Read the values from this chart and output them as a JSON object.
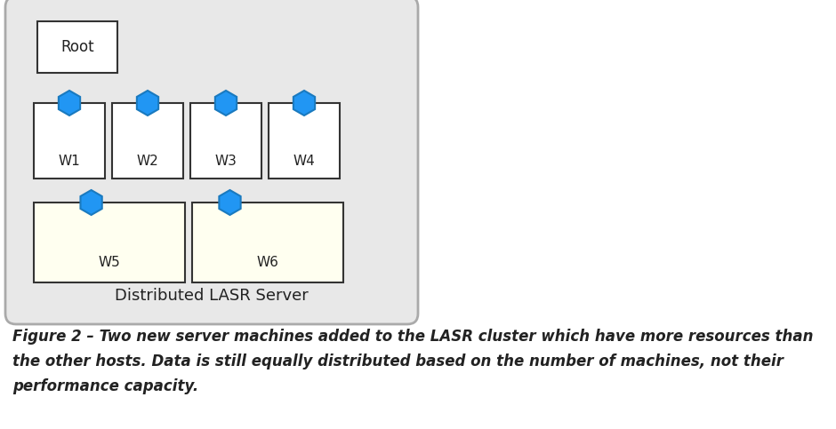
{
  "bg_color": "#ffffff",
  "outer_box_color": "#e8e8e8",
  "outer_box_edge": "#aaaaaa",
  "root_box_color": "#ffffff",
  "root_box_edge": "#333333",
  "worker_box_color": "#ffffff",
  "worker_box_edge": "#333333",
  "worker_box_yellow": "#fffff0",
  "worker_box_yellow_edge": "#333333",
  "hex_color": "#2196f3",
  "hex_edge": "#1a7abf",
  "root_label": "Root",
  "server_label": "Distributed LASR Server",
  "workers_row1": [
    "W1",
    "W2",
    "W3",
    "W4"
  ],
  "workers_row2": [
    "W5",
    "W6"
  ],
  "caption_line1": "Figure 2 – Two new server machines added to the LASR cluster which have more resources than",
  "caption_line2": "the other hosts. Data is still equally distributed based on the number of machines, not their",
  "caption_line3": "performance capacity.",
  "caption_fontsize": 12,
  "fig_width": 9.4,
  "fig_height": 4.83,
  "dpi": 100
}
